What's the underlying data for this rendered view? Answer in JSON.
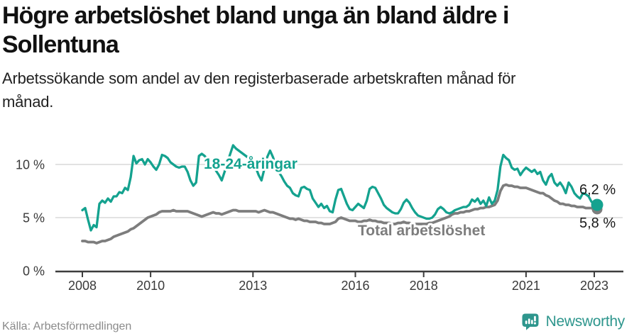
{
  "header": {
    "title": "Högre arbetslöshet bland unga än bland äldre i\nSollentuna",
    "subtitle": "Arbetssökande som andel av den registerbaserade arbetskraften månad för\nmånad."
  },
  "footer": {
    "source": "Källa: Arbetsförmedlingen",
    "brand": {
      "name": "Newsworthy",
      "icon": "newsworthy-speech-bubble-bar-chart-icon",
      "color": "#2e968d"
    }
  },
  "colors": {
    "youth_line": "#14a28f",
    "total_line": "#7d7d7d",
    "grid": "#d9d9d9",
    "axis": "#3d3d3d",
    "value_label": "#1a1a1a",
    "background": "#ffffff"
  },
  "chart_data": {
    "type": "line",
    "title": "Högre arbetslöshet bland unga än bland äldre i Sollentuna",
    "subtitle": "Arbetssökande som andel av den registerbaserade arbetskraften månad för månad.",
    "x_start": {
      "year": 2008,
      "month": 1
    },
    "x_end": {
      "year": 2023,
      "month": 2
    },
    "x_frequency": "monthly",
    "x_ticks": [
      2008,
      2010,
      2013,
      2016,
      2018,
      2021,
      2023
    ],
    "y_ticks": [
      {
        "value": 0,
        "label": "0 %"
      },
      {
        "value": 5,
        "label": "5 %"
      },
      {
        "value": 10,
        "label": "10 %"
      }
    ],
    "ylim": [
      0,
      12.2
    ],
    "grid": true,
    "legend": "inline-labels",
    "series": [
      {
        "name": "Total arbetslöshet",
        "color": "#7d7d7d",
        "end_value": 5.8,
        "end_label": "5,8 %",
        "values": [
          2.8,
          2.8,
          2.7,
          2.7,
          2.7,
          2.6,
          2.7,
          2.8,
          2.8,
          2.9,
          3.0,
          3.2,
          3.3,
          3.4,
          3.5,
          3.6,
          3.7,
          3.9,
          4.0,
          4.2,
          4.4,
          4.6,
          4.8,
          5.0,
          5.1,
          5.2,
          5.3,
          5.5,
          5.6,
          5.6,
          5.6,
          5.6,
          5.7,
          5.6,
          5.6,
          5.6,
          5.6,
          5.6,
          5.5,
          5.4,
          5.3,
          5.2,
          5.1,
          5.2,
          5.3,
          5.4,
          5.5,
          5.4,
          5.4,
          5.3,
          5.4,
          5.5,
          5.6,
          5.7,
          5.7,
          5.6,
          5.6,
          5.6,
          5.6,
          5.6,
          5.6,
          5.6,
          5.5,
          5.6,
          5.7,
          5.6,
          5.5,
          5.5,
          5.4,
          5.3,
          5.2,
          5.1,
          5.0,
          4.9,
          4.9,
          4.8,
          4.9,
          4.8,
          4.7,
          4.7,
          4.6,
          4.6,
          4.6,
          4.5,
          4.5,
          4.4,
          4.4,
          4.4,
          4.5,
          4.6,
          4.9,
          5.0,
          4.9,
          4.8,
          4.7,
          4.7,
          4.7,
          4.6,
          4.6,
          4.7,
          4.7,
          4.8,
          4.7,
          4.7,
          4.6,
          4.6,
          4.5,
          4.5,
          4.5,
          4.4,
          4.4,
          4.5,
          4.5,
          4.6,
          4.5,
          4.5,
          4.4,
          4.4,
          4.4,
          4.4,
          4.4,
          4.4,
          4.5,
          4.5,
          4.6,
          4.7,
          4.8,
          4.9,
          5.0,
          5.1,
          5.3,
          5.4,
          5.4,
          5.5,
          5.5,
          5.6,
          5.6,
          5.7,
          5.8,
          5.8,
          5.9,
          5.9,
          6.0,
          6.0,
          6.1,
          6.2,
          6.6,
          7.5,
          8.0,
          8.1,
          8.0,
          8.0,
          7.9,
          7.9,
          7.8,
          7.8,
          7.8,
          7.7,
          7.6,
          7.5,
          7.4,
          7.3,
          7.3,
          7.1,
          7.0,
          6.8,
          6.6,
          6.5,
          6.3,
          6.3,
          6.2,
          6.2,
          6.1,
          6.1,
          6.0,
          6.0,
          6.0,
          5.9,
          5.9,
          5.9,
          5.8,
          5.8
        ]
      },
      {
        "name": "18-24-åringar",
        "color": "#14a28f",
        "end_value": 6.2,
        "end_label": "6,2 %",
        "values": [
          5.7,
          5.9,
          4.8,
          3.8,
          4.3,
          4.1,
          6.3,
          6.6,
          6.4,
          6.8,
          6.5,
          7.0,
          7.0,
          7.4,
          7.3,
          7.8,
          7.6,
          8.8,
          10.8,
          10.1,
          10.4,
          10.5,
          10.0,
          10.5,
          10.2,
          9.8,
          9.5,
          10.0,
          10.9,
          10.8,
          10.6,
          10.2,
          10.0,
          9.8,
          9.7,
          9.8,
          9.8,
          9.3,
          8.5,
          8.0,
          8.3,
          10.8,
          11.0,
          10.8,
          10.5,
          10.3,
          10.0,
          9.4,
          9.0,
          8.5,
          9.3,
          10.2,
          11.0,
          11.8,
          11.5,
          11.3,
          11.1,
          10.9,
          10.7,
          10.5,
          10.3,
          9.7,
          9.0,
          8.5,
          9.6,
          10.7,
          11.3,
          10.7,
          9.9,
          9.3,
          8.9,
          8.4,
          8.0,
          7.8,
          7.3,
          7.1,
          7.0,
          7.8,
          7.9,
          7.7,
          7.6,
          6.8,
          6.4,
          6.0,
          6.3,
          5.9,
          6.1,
          5.6,
          5.5,
          6.7,
          7.6,
          7.7,
          7.0,
          6.3,
          5.8,
          5.7,
          6.0,
          6.3,
          6.1,
          5.9,
          6.6,
          7.7,
          7.9,
          7.8,
          7.3,
          6.8,
          6.2,
          5.9,
          5.7,
          5.5,
          5.4,
          5.4,
          5.8,
          6.4,
          6.7,
          6.4,
          5.9,
          5.5,
          5.2,
          5.1,
          5.0,
          4.9,
          4.9,
          5.0,
          5.3,
          5.8,
          6.0,
          5.8,
          5.5,
          5.4,
          5.5,
          5.7,
          5.8,
          5.9,
          6.0,
          6.0,
          6.2,
          6.7,
          6.5,
          6.8,
          6.3,
          6.6,
          6.1,
          6.9,
          6.3,
          6.6,
          7.6,
          9.8,
          10.9,
          10.6,
          10.4,
          9.7,
          9.5,
          9.6,
          9.0,
          9.4,
          9.7,
          9.5,
          9.3,
          9.5,
          9.1,
          9.3,
          8.5,
          8.1,
          8.8,
          9.1,
          8.3,
          8.0,
          8.3,
          7.9,
          7.3,
          8.3,
          7.9,
          7.3,
          7.0,
          6.8,
          7.3,
          7.2,
          7.0,
          6.5,
          6.3,
          6.2
        ]
      }
    ]
  }
}
